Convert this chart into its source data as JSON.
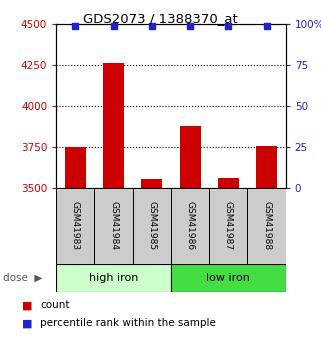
{
  "title": "GDS2073 / 1388370_at",
  "categories": [
    "GSM41983",
    "GSM41984",
    "GSM41985",
    "GSM41986",
    "GSM41987",
    "GSM41988"
  ],
  "bar_values": [
    3750,
    4260,
    3555,
    3880,
    3560,
    3755
  ],
  "bar_base": 3500,
  "percentile_values": [
    99,
    99,
    99,
    99,
    99,
    99
  ],
  "bar_color": "#cc0000",
  "dot_color": "#2222cc",
  "ylim_left": [
    3500,
    4500
  ],
  "ylim_right": [
    0,
    100
  ],
  "yticks_left": [
    3500,
    3750,
    4000,
    4250,
    4500
  ],
  "ytick_labels_left": [
    "3500",
    "3750",
    "4000",
    "4250",
    "4500"
  ],
  "yticks_right": [
    0,
    25,
    50,
    75,
    100
  ],
  "ytick_labels_right": [
    "0",
    "25",
    "50",
    "75",
    "100%"
  ],
  "group_info": [
    {
      "start": 0,
      "end": 3,
      "color": "#ccffcc",
      "label": "high iron"
    },
    {
      "start": 3,
      "end": 6,
      "color": "#44dd44",
      "label": "low iron"
    }
  ],
  "dose_label": "dose",
  "legend_count_label": "count",
  "legend_pct_label": "percentile rank within the sample",
  "left_tick_color": "#cc0000",
  "right_tick_color": "#2222cc",
  "background_color": "#ffffff",
  "plot_bg_color": "#ffffff",
  "box_color": "#cccccc",
  "grid_linestyle": ":",
  "grid_linewidth": 0.8,
  "grid_yticks": [
    3750,
    4000,
    4250
  ]
}
